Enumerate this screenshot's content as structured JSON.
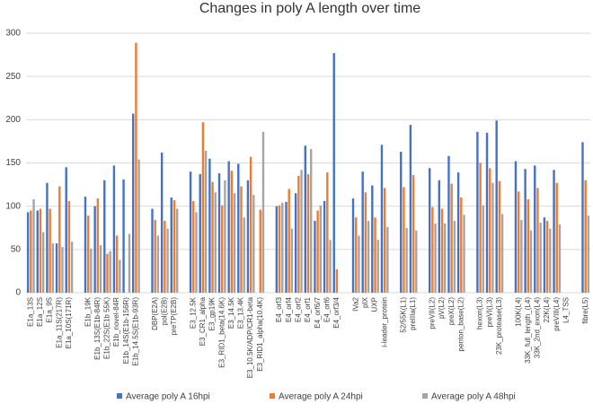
{
  "chart_data": {
    "type": "bar",
    "title": "Changes in poly A length over time",
    "categories": [
      "E1a_13S",
      "E1a_12S",
      "E1a_9S",
      "E1a_11S(217R)",
      "E1a_10S(171R)",
      null,
      "E1b_19K",
      "E1b_13S(E1b-84R)",
      "E1b_22S(E1b 55K)",
      "E1b_novel-84R",
      "E1b_14S(E1b-156R)",
      "E1b_14.5S(E1b-93R)",
      null,
      "DBP(E2A)",
      "pol(E2B)",
      "preTP(E2B)",
      null,
      "E3_12.5K",
      "E3_CR1_alpha",
      "E3_gp19K",
      "E3_RID1_beta(14.6K)",
      "E3_14.5K",
      "E3_13.4K",
      "E3_10.5K/ADP/CR1-beta",
      "E3_RID1_alpha(10.4K)",
      null,
      "E4_orf3",
      "E4_orf4",
      "E4_orf2",
      "E4_orf1",
      "E4_orf6/7",
      "E4_orf6",
      "E4_orf3/4",
      null,
      "IVa2",
      "pIX",
      "UXP",
      "i-leader_protein",
      null,
      "52/55K(L1)",
      "preIIIa(L1)",
      null,
      "preVII(L2)",
      "pV(L2)",
      "preX(L2)",
      "penton_base(L2)",
      null,
      "hexon(L3)",
      "preVI(L3)",
      "23K_protease(L3)",
      null,
      "100K(L4)",
      "33K_full_length_(L4)",
      "33K_2nd_exon(L4)",
      "22K(L4)",
      "preVIII(L4)",
      "L4_TSS",
      null,
      "fibre(L5)"
    ],
    "series": [
      {
        "name": "Average poly A  16hpi",
        "color": "#4472c4",
        "values": [
          93,
          95,
          127,
          57,
          145,
          null,
          111,
          100,
          130,
          147,
          131,
          207,
          null,
          97,
          162,
          110,
          null,
          140,
          137,
          155,
          138,
          152,
          149,
          130,
          null,
          null,
          100,
          105,
          115,
          170,
          83,
          106,
          277,
          null,
          109,
          140,
          124,
          171,
          null,
          163,
          194,
          null,
          144,
          130,
          158,
          139,
          null,
          186,
          185,
          199,
          null,
          152,
          143,
          147,
          87,
          142,
          null,
          null,
          174
        ]
      },
      {
        "name": "Average poly A  24hpi",
        "color": "#ed7d31",
        "values": [
          95,
          97,
          97,
          123,
          106,
          null,
          89,
          109,
          45,
          66,
          null,
          289,
          null,
          84,
          83,
          107,
          null,
          106,
          197,
          128,
          101,
          141,
          123,
          157,
          96,
          null,
          101,
          120,
          135,
          137,
          95,
          139,
          27,
          null,
          87,
          116,
          87,
          121,
          null,
          122,
          136,
          null,
          99,
          97,
          126,
          110,
          null,
          150,
          144,
          129,
          null,
          117,
          108,
          121,
          83,
          127,
          null,
          null,
          130
        ]
      },
      {
        "name": "Average poly A  48hpi",
        "color": "#a5a5a5",
        "values": [
          108,
          70,
          57,
          53,
          59,
          null,
          51,
          55,
          48,
          38,
          68,
          154,
          null,
          66,
          74,
          97,
          null,
          93,
          164,
          116,
          130,
          115,
          87,
          113,
          186,
          null,
          104,
          74,
          142,
          166,
          101,
          61,
          null,
          null,
          66,
          83,
          61,
          76,
          null,
          75,
          72,
          null,
          80,
          80,
          83,
          90,
          null,
          101,
          127,
          91,
          null,
          84,
          72,
          81,
          74,
          79,
          null,
          null,
          89
        ]
      }
    ],
    "ylim": [
      0,
      300
    ],
    "yticks": [
      0,
      50,
      100,
      150,
      200,
      250,
      300
    ],
    "grid": true,
    "legend": "bottom"
  }
}
